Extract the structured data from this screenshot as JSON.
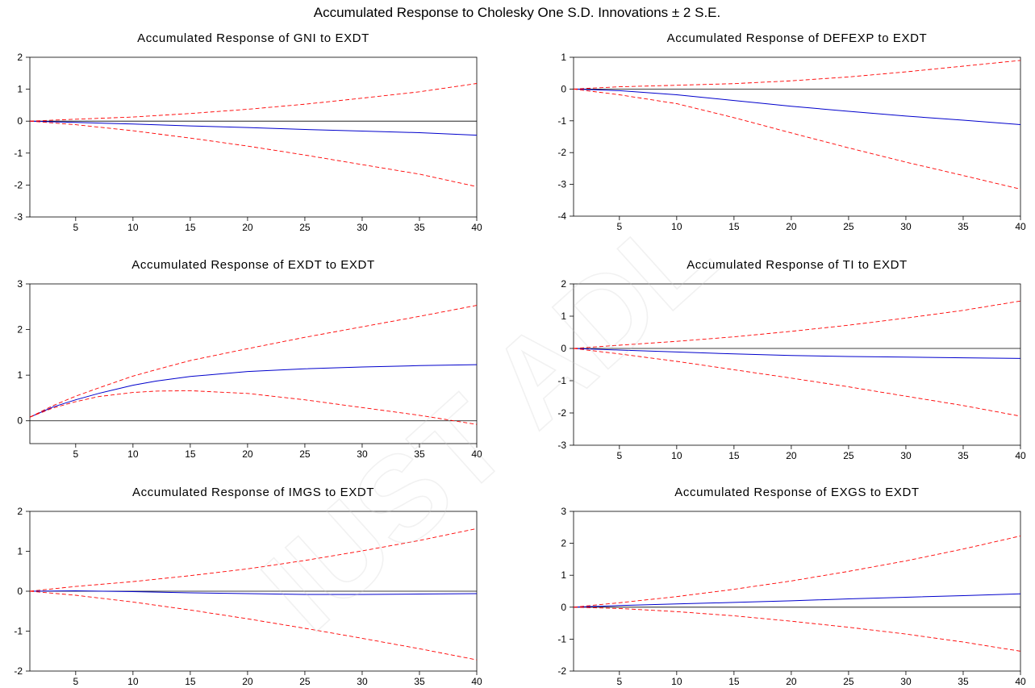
{
  "figure_title": "Accumulated Response to Cholesky One S.D. Innovations ± 2 S.E.",
  "watermark": "IUST ADL",
  "colors": {
    "response": "#0000cc",
    "band": "#ff0000",
    "zero_line": "#000000",
    "axis": "#000000",
    "background": "#ffffff"
  },
  "chart_data": [
    {
      "type": "line",
      "title": "Accumulated Response of GNI to EXDT",
      "xlabel": "",
      "ylabel": "",
      "xlim": [
        1,
        40
      ],
      "ylim": [
        -3,
        2
      ],
      "x_ticks": [
        5,
        10,
        15,
        20,
        25,
        30,
        35,
        40
      ],
      "y_ticks": [
        2,
        1,
        0,
        -1,
        -2,
        -3
      ],
      "grid": false,
      "series": [
        {
          "role": "response",
          "style": "solid",
          "x": [
            1,
            5,
            10,
            15,
            20,
            25,
            30,
            35,
            40
          ],
          "values": [
            0,
            -0.04,
            -0.09,
            -0.15,
            -0.2,
            -0.26,
            -0.31,
            -0.36,
            -0.44
          ]
        },
        {
          "role": "upper",
          "style": "dashed",
          "x": [
            1,
            5,
            10,
            15,
            20,
            25,
            30,
            35,
            40
          ],
          "values": [
            0,
            0.06,
            0.13,
            0.24,
            0.37,
            0.53,
            0.72,
            0.92,
            1.18
          ]
        },
        {
          "role": "lower",
          "style": "dashed",
          "x": [
            1,
            5,
            10,
            15,
            20,
            25,
            30,
            35,
            40
          ],
          "values": [
            0,
            -0.11,
            -0.3,
            -0.53,
            -0.78,
            -1.06,
            -1.36,
            -1.66,
            -2.05
          ]
        }
      ]
    },
    {
      "type": "line",
      "title": "Accumulated Response of DEFEXP to EXDT",
      "xlabel": "",
      "ylabel": "",
      "xlim": [
        1,
        40
      ],
      "ylim": [
        -4,
        1
      ],
      "x_ticks": [
        5,
        10,
        15,
        20,
        25,
        30,
        35,
        40
      ],
      "y_ticks": [
        1,
        0,
        -1,
        -2,
        -3,
        -4
      ],
      "grid": false,
      "series": [
        {
          "role": "response",
          "style": "solid",
          "x": [
            1,
            5,
            10,
            15,
            20,
            25,
            30,
            35,
            40
          ],
          "values": [
            0,
            -0.05,
            -0.18,
            -0.36,
            -0.54,
            -0.7,
            -0.85,
            -0.98,
            -1.12
          ]
        },
        {
          "role": "upper",
          "style": "dashed",
          "x": [
            1,
            5,
            10,
            15,
            20,
            25,
            30,
            35,
            40
          ],
          "values": [
            0,
            0.07,
            0.12,
            0.17,
            0.26,
            0.38,
            0.54,
            0.72,
            0.9
          ]
        },
        {
          "role": "lower",
          "style": "dashed",
          "x": [
            1,
            5,
            10,
            15,
            20,
            25,
            30,
            35,
            40
          ],
          "values": [
            0,
            -0.18,
            -0.46,
            -0.9,
            -1.38,
            -1.85,
            -2.3,
            -2.72,
            -3.15
          ]
        }
      ]
    },
    {
      "type": "line",
      "title": "Accumulated Response of EXDT to EXDT",
      "xlabel": "",
      "ylabel": "",
      "xlim": [
        1,
        40
      ],
      "ylim": [
        -0.5,
        3
      ],
      "x_ticks": [
        5,
        10,
        15,
        20,
        25,
        30,
        35,
        40
      ],
      "y_ticks": [
        3,
        2,
        1,
        0
      ],
      "grid": false,
      "series": [
        {
          "role": "response",
          "style": "solid",
          "x": [
            1,
            3,
            5,
            7,
            10,
            12,
            15,
            20,
            25,
            30,
            35,
            40
          ],
          "values": [
            0.08,
            0.3,
            0.46,
            0.6,
            0.78,
            0.87,
            0.97,
            1.08,
            1.14,
            1.18,
            1.21,
            1.23
          ]
        },
        {
          "role": "upper",
          "style": "dashed",
          "x": [
            1,
            3,
            5,
            7,
            10,
            12,
            15,
            20,
            25,
            30,
            35,
            40
          ],
          "values": [
            0.08,
            0.33,
            0.54,
            0.72,
            0.98,
            1.12,
            1.32,
            1.58,
            1.83,
            2.06,
            2.29,
            2.53
          ]
        },
        {
          "role": "lower",
          "style": "dashed",
          "x": [
            1,
            3,
            5,
            7,
            10,
            12,
            15,
            20,
            25,
            30,
            35,
            40
          ],
          "values": [
            0.08,
            0.28,
            0.42,
            0.53,
            0.62,
            0.65,
            0.66,
            0.6,
            0.46,
            0.29,
            0.12,
            -0.08
          ]
        }
      ]
    },
    {
      "type": "line",
      "title": "Accumulated Response of TI to EXDT",
      "xlabel": "",
      "ylabel": "",
      "xlim": [
        1,
        40
      ],
      "ylim": [
        -3,
        2
      ],
      "x_ticks": [
        5,
        10,
        15,
        20,
        25,
        30,
        35,
        40
      ],
      "y_ticks": [
        2,
        1,
        0,
        -1,
        -2,
        -3
      ],
      "grid": false,
      "series": [
        {
          "role": "response",
          "style": "solid",
          "x": [
            1,
            5,
            10,
            15,
            20,
            25,
            30,
            35,
            40
          ],
          "values": [
            0,
            -0.05,
            -0.11,
            -0.17,
            -0.22,
            -0.25,
            -0.27,
            -0.29,
            -0.31
          ]
        },
        {
          "role": "upper",
          "style": "dashed",
          "x": [
            1,
            5,
            10,
            15,
            20,
            25,
            30,
            35,
            40
          ],
          "values": [
            0,
            0.1,
            0.22,
            0.36,
            0.53,
            0.72,
            0.94,
            1.18,
            1.47
          ]
        },
        {
          "role": "lower",
          "style": "dashed",
          "x": [
            1,
            5,
            10,
            15,
            20,
            25,
            30,
            35,
            40
          ],
          "values": [
            0,
            -0.17,
            -0.4,
            -0.66,
            -0.92,
            -1.19,
            -1.48,
            -1.77,
            -2.1
          ]
        }
      ]
    },
    {
      "type": "line",
      "title": "Accumulated Response of IMGS to EXDT",
      "xlabel": "",
      "ylabel": "",
      "xlim": [
        1,
        40
      ],
      "ylim": [
        -2,
        2
      ],
      "x_ticks": [
        5,
        10,
        15,
        20,
        25,
        30,
        35,
        40
      ],
      "y_ticks": [
        2,
        1,
        0,
        -1,
        -2
      ],
      "grid": false,
      "series": [
        {
          "role": "response",
          "style": "solid",
          "x": [
            1,
            5,
            10,
            15,
            20,
            25,
            30,
            35,
            40
          ],
          "values": [
            0,
            0.01,
            -0.01,
            -0.04,
            -0.06,
            -0.08,
            -0.08,
            -0.07,
            -0.06
          ]
        },
        {
          "role": "upper",
          "style": "dashed",
          "x": [
            1,
            5,
            10,
            15,
            20,
            25,
            30,
            35,
            40
          ],
          "values": [
            0,
            0.12,
            0.24,
            0.39,
            0.56,
            0.77,
            1.01,
            1.27,
            1.57
          ]
        },
        {
          "role": "lower",
          "style": "dashed",
          "x": [
            1,
            5,
            10,
            15,
            20,
            25,
            30,
            35,
            40
          ],
          "values": [
            0,
            -0.1,
            -0.27,
            -0.47,
            -0.69,
            -0.93,
            -1.18,
            -1.44,
            -1.72
          ]
        }
      ]
    },
    {
      "type": "line",
      "title": "Accumulated Response of EXGS to EXDT",
      "xlabel": "",
      "ylabel": "",
      "xlim": [
        1,
        40
      ],
      "ylim": [
        -2,
        3
      ],
      "x_ticks": [
        5,
        10,
        15,
        20,
        25,
        30,
        35,
        40
      ],
      "y_ticks": [
        3,
        2,
        1,
        0,
        -1,
        -2
      ],
      "grid": false,
      "series": [
        {
          "role": "response",
          "style": "solid",
          "x": [
            1,
            5,
            10,
            15,
            20,
            25,
            30,
            35,
            40
          ],
          "values": [
            0,
            0.05,
            0.1,
            0.15,
            0.2,
            0.26,
            0.31,
            0.36,
            0.42
          ]
        },
        {
          "role": "upper",
          "style": "dashed",
          "x": [
            1,
            5,
            10,
            15,
            20,
            25,
            30,
            35,
            40
          ],
          "values": [
            0,
            0.14,
            0.33,
            0.56,
            0.82,
            1.12,
            1.45,
            1.82,
            2.23
          ]
        },
        {
          "role": "lower",
          "style": "dashed",
          "x": [
            1,
            5,
            10,
            15,
            20,
            25,
            30,
            35,
            40
          ],
          "values": [
            0,
            -0.04,
            -0.14,
            -0.27,
            -0.44,
            -0.63,
            -0.84,
            -1.09,
            -1.38
          ]
        }
      ]
    }
  ]
}
